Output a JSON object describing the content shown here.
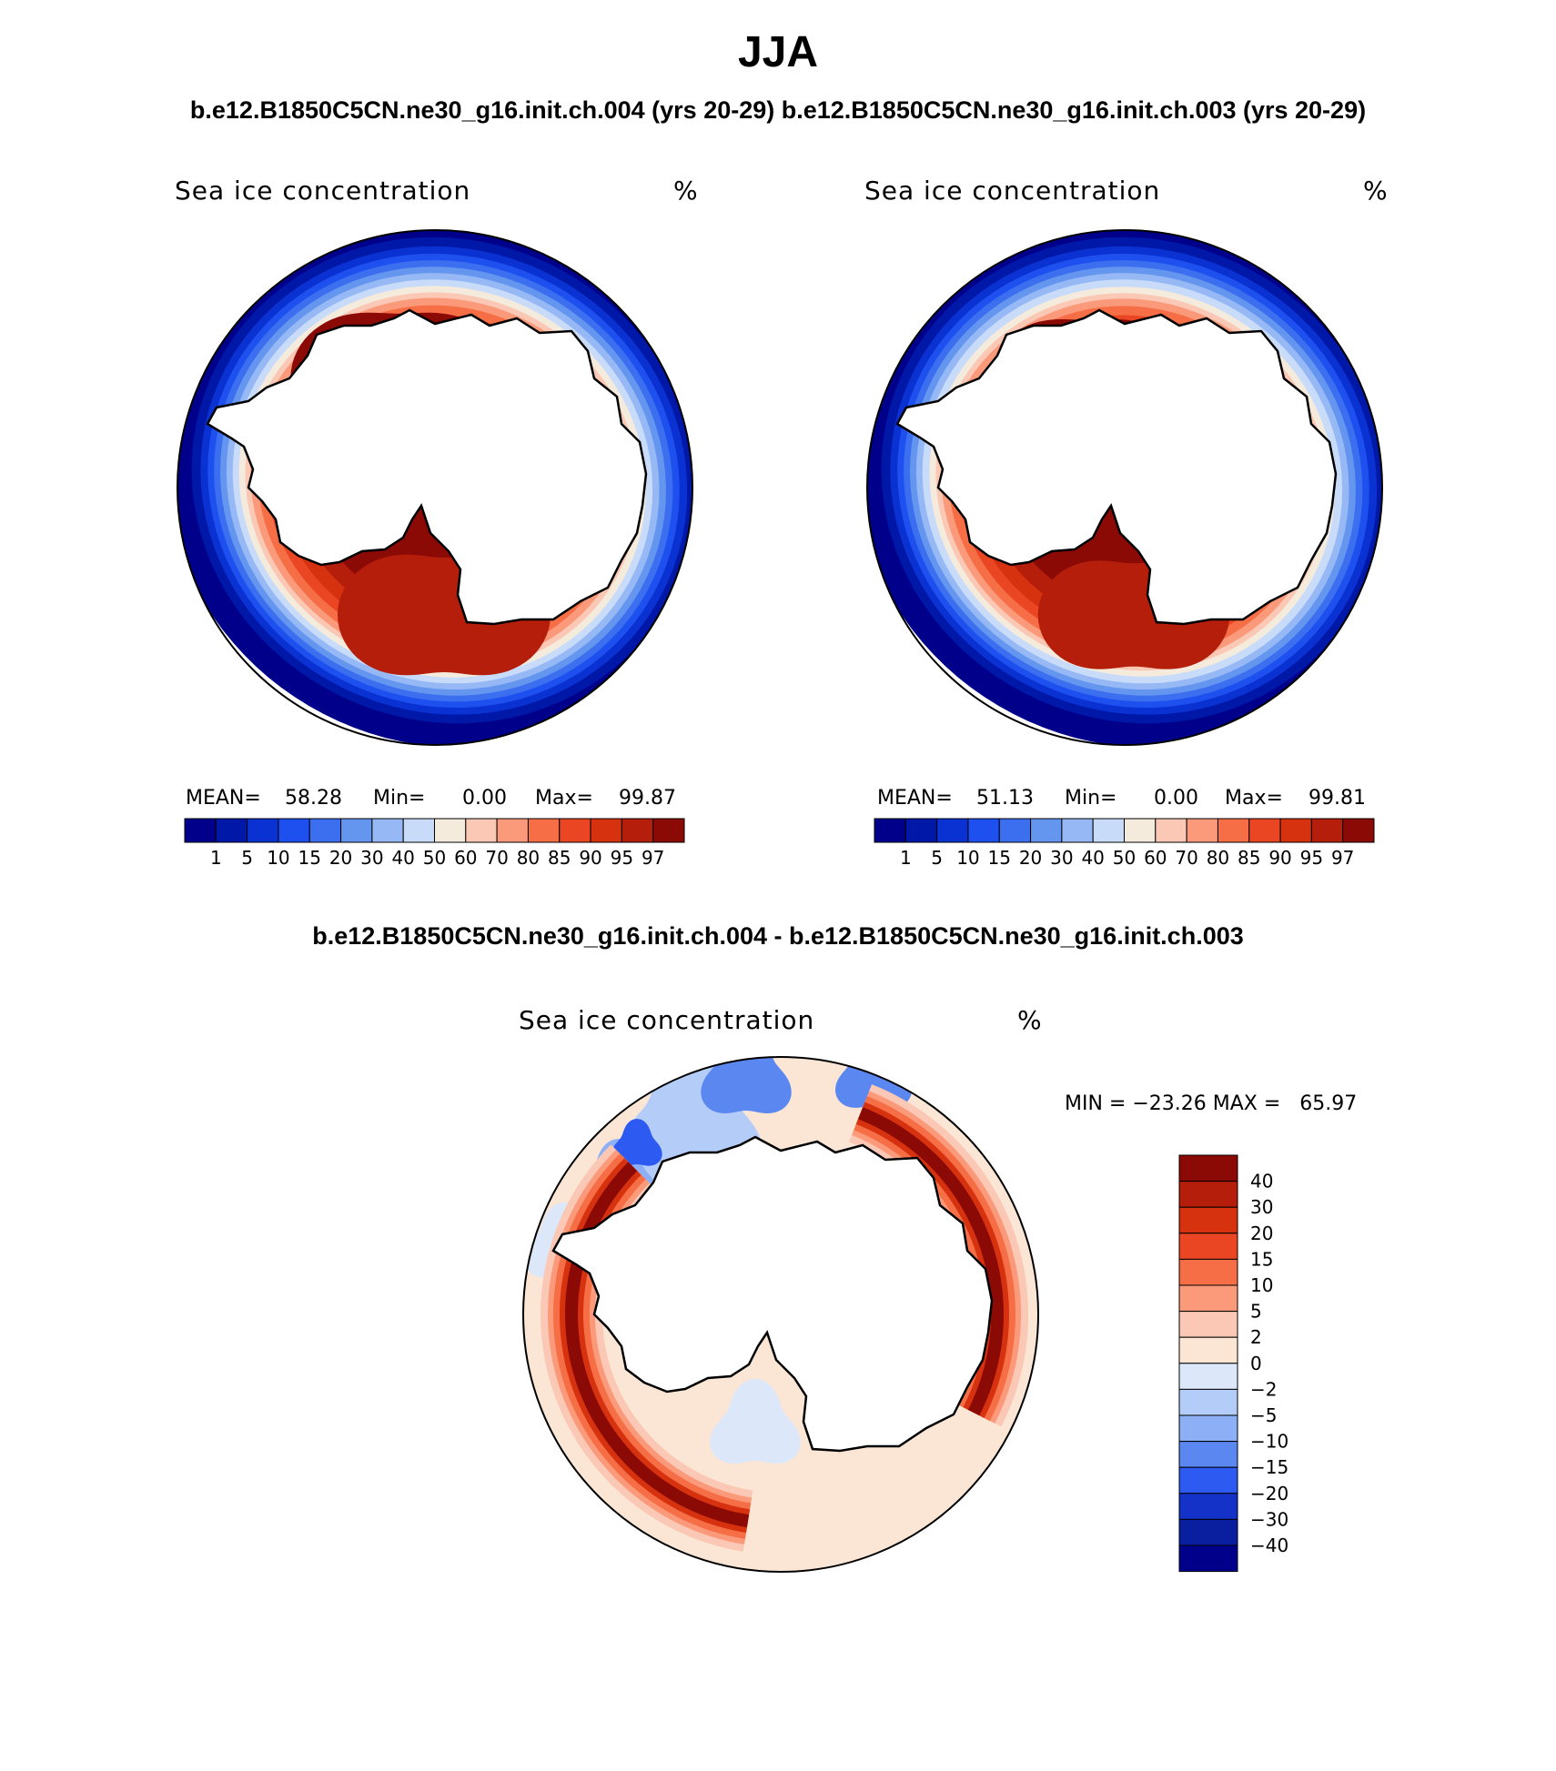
{
  "figure": {
    "title": "JJA",
    "case_titles": "b.e12.B1850C5CN.ne30_g16.init.ch.004 (yrs 20-29) b.e12.B1850C5CN.ne30_g16.init.ch.003 (yrs 20-29)",
    "diff_title": "b.e12.B1850C5CN.ne30_g16.init.ch.004 - b.e12.B1850C5CN.ne30_g16.init.ch.003"
  },
  "panels": [
    {
      "id": "case-004",
      "variable": "Sea ice concentration",
      "units": "%",
      "mean_label": "MEAN=",
      "mean": "58.28",
      "min_label": "Min=",
      "min": "0.00",
      "max_label": "Max=",
      "max": "99.87",
      "ice_scale": 1.0
    },
    {
      "id": "case-003",
      "variable": "Sea ice concentration",
      "units": "%",
      "mean_label": "MEAN=",
      "mean": "51.13",
      "min_label": "Min=",
      "min": "0.00",
      "max_label": "Max=",
      "max": "99.81",
      "ice_scale": 0.9
    }
  ],
  "abs_colorbar": {
    "levels": [
      "1",
      "5",
      "10",
      "15",
      "20",
      "30",
      "40",
      "50",
      "60",
      "70",
      "80",
      "85",
      "90",
      "95",
      "97"
    ],
    "colors": [
      "#00008a",
      "#0018a8",
      "#0a32d2",
      "#1e50f0",
      "#3c6ef0",
      "#6496f0",
      "#96b9f5",
      "#c8dcfa",
      "#f5ebdc",
      "#fac8b4",
      "#fa9a7a",
      "#f56e46",
      "#eb4623",
      "#d7320f",
      "#b41e0a",
      "#8c0a05"
    ]
  },
  "diff_panel": {
    "variable": "Sea ice concentration",
    "units": "%",
    "stats": "MIN = −23.26 MAX =   65.97"
  },
  "diff_colorbar": {
    "levels": [
      "40",
      "30",
      "20",
      "15",
      "10",
      "5",
      "2",
      "0",
      "−2",
      "−5",
      "−10",
      "−15",
      "−20",
      "−30",
      "−40"
    ],
    "colors_top_to_bottom": [
      "#8c0a05",
      "#b41e0a",
      "#d7320f",
      "#eb4623",
      "#f56e46",
      "#fa9a7a",
      "#fac8b4",
      "#fbe6d6",
      "#dce8fa",
      "#b4cdf8",
      "#8caff5",
      "#5a87f0",
      "#2d5af0",
      "#1432c8",
      "#0a1ea0",
      "#00008a"
    ]
  },
  "chart_data": [
    {
      "type": "heatmap",
      "projection": "south polar stereographic",
      "title": "Sea ice concentration",
      "units": "%",
      "case": "b.e12.B1850C5CN.ne30_g16.init.ch.004 (yrs 20-29)",
      "season": "JJA",
      "stats": {
        "mean": 58.28,
        "min": 0.0,
        "max": 99.87
      },
      "levels": [
        1,
        5,
        10,
        15,
        20,
        30,
        40,
        50,
        60,
        70,
        80,
        85,
        90,
        95,
        97
      ]
    },
    {
      "type": "heatmap",
      "projection": "south polar stereographic",
      "title": "Sea ice concentration",
      "units": "%",
      "case": "b.e12.B1850C5CN.ne30_g16.init.ch.003 (yrs 20-29)",
      "season": "JJA",
      "stats": {
        "mean": 51.13,
        "min": 0.0,
        "max": 99.81
      },
      "levels": [
        1,
        5,
        10,
        15,
        20,
        30,
        40,
        50,
        60,
        70,
        80,
        85,
        90,
        95,
        97
      ]
    },
    {
      "type": "heatmap",
      "projection": "south polar stereographic",
      "title": "Sea ice concentration",
      "units": "%",
      "case": "b.e12.B1850C5CN.ne30_g16.init.ch.004 - b.e12.B1850C5CN.ne30_g16.init.ch.003",
      "season": "JJA",
      "stats": {
        "min": -23.26,
        "max": 65.97
      },
      "levels": [
        -40,
        -30,
        -20,
        -15,
        -10,
        -5,
        -2,
        0,
        2,
        5,
        10,
        15,
        20,
        30,
        40
      ]
    }
  ]
}
